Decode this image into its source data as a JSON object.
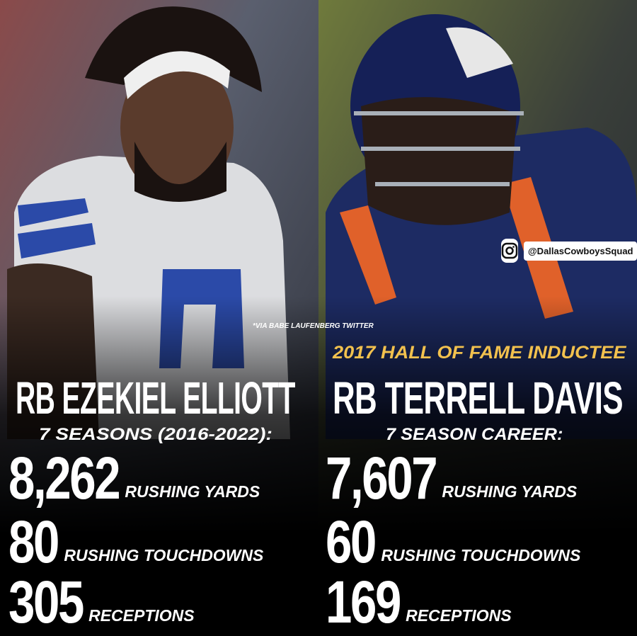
{
  "credit": "*VIA BABE LAUFENBERG TWITTER",
  "handle": "@DallasCowboysSquad",
  "players": [
    {
      "name": "RB EZEKIEL ELLIOTT",
      "span": "7 SEASONS (2016-2022):",
      "stats": [
        {
          "value": "8,262",
          "label": "RUSHING YARDS"
        },
        {
          "value": "80",
          "label": "RUSHING TOUCHDOWNS"
        },
        {
          "value": "305",
          "label": "RECEPTIONS"
        }
      ]
    },
    {
      "tagline": "2017 HALL OF FAME INDUCTEE",
      "name": "RB TERRELL DAVIS",
      "span": "7 SEASON CAREER:",
      "stats": [
        {
          "value": "7,607",
          "label": "RUSHING YARDS"
        },
        {
          "value": "60",
          "label": "RUSHING TOUCHDOWNS"
        },
        {
          "value": "169",
          "label": "RECEPTIONS"
        }
      ]
    }
  ]
}
